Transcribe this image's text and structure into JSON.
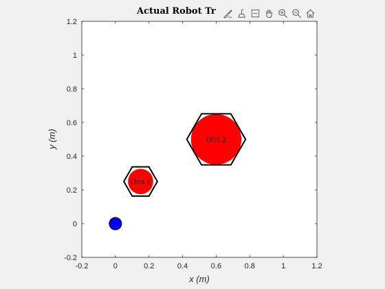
{
  "figure": {
    "title": "Actual Robot Tr",
    "toolbar": [
      {
        "name": "brush-icon"
      },
      {
        "name": "data-tips-icon"
      },
      {
        "name": "restore-view-icon"
      },
      {
        "name": "pan-hand-icon"
      },
      {
        "name": "zoom-in-icon"
      },
      {
        "name": "zoom-out-icon"
      },
      {
        "name": "home-icon"
      }
    ]
  },
  "chart_data": {
    "type": "scatter",
    "title": "Actual Robot Tr",
    "xlabel": "x (m)",
    "ylabel": "y (m)",
    "xlim": [
      -0.2,
      1.2
    ],
    "ylim": [
      -0.2,
      1.2
    ],
    "xticks": [
      "-0.2",
      "0",
      "0.2",
      "0.4",
      "0.6",
      "0.8",
      "1",
      "1.2"
    ],
    "yticks": [
      "-0.2",
      "0",
      "0.2",
      "0.4",
      "0.6",
      "0.8",
      "1",
      "1.2"
    ],
    "grid": false,
    "robot": {
      "x": 0,
      "y": 0,
      "color": "#0000ff"
    },
    "obstacles": [
      {
        "label": "Obs 1",
        "x": 0.15,
        "y": 0.25,
        "hex_radius": 0.1,
        "fill_radius": 0.075,
        "color": "#ff0000"
      },
      {
        "label": "Obs 2",
        "x": 0.6,
        "y": 0.5,
        "hex_radius": 0.175,
        "fill_radius": 0.15,
        "color": "#ff0000"
      }
    ]
  }
}
